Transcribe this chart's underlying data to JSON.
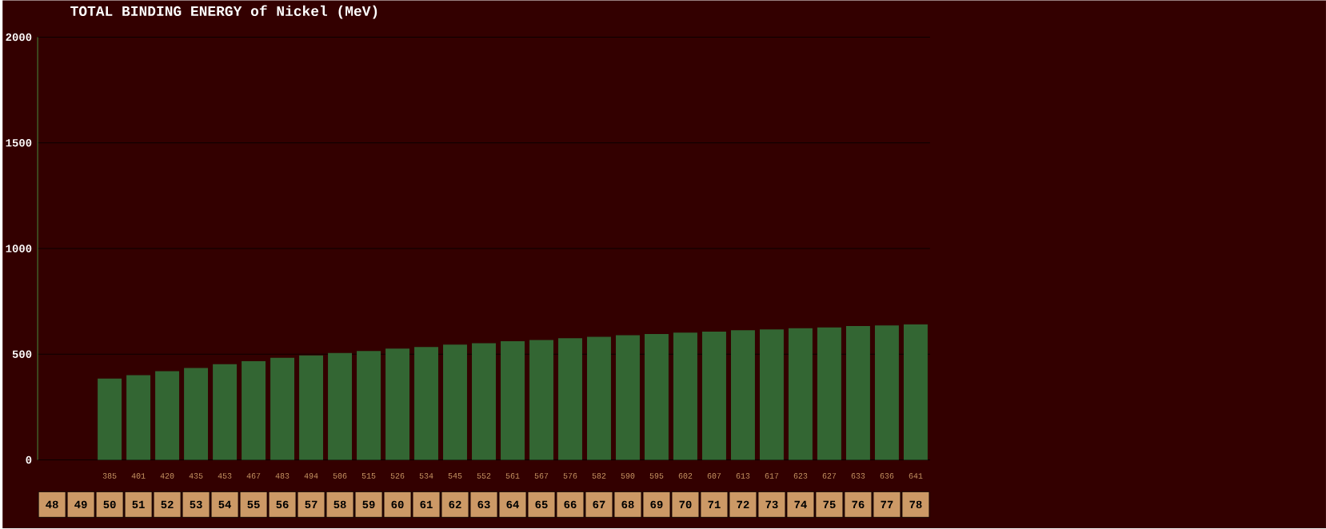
{
  "chart_data": {
    "type": "bar",
    "title": "TOTAL BINDING ENERGY of Nickel (MeV)",
    "categories": [
      "48",
      "49",
      "50",
      "51",
      "52",
      "53",
      "54",
      "55",
      "56",
      "57",
      "58",
      "59",
      "60",
      "61",
      "62",
      "63",
      "64",
      "65",
      "66",
      "67",
      "68",
      "69",
      "70",
      "71",
      "72",
      "73",
      "74",
      "75",
      "76",
      "77",
      "78"
    ],
    "values": [
      null,
      null,
      385,
      401,
      420,
      435,
      453,
      467,
      483,
      494,
      506,
      515,
      526,
      534,
      545,
      552,
      561,
      567,
      576,
      582,
      590,
      595,
      602,
      607,
      613,
      617,
      623,
      627,
      633,
      636,
      641
    ],
    "color": "#336633",
    "ylim": [
      0,
      2000
    ],
    "yticks": [
      0,
      500,
      1000,
      1500,
      2000
    ],
    "value_labels": [
      null,
      null,
      "385",
      "401",
      "420",
      "435",
      "453",
      "467",
      "483",
      "494",
      "506",
      "515",
      "526",
      "534",
      "545",
      "552",
      "561",
      "567",
      "576",
      "582",
      "590",
      "595",
      "602",
      "607",
      "613",
      "617",
      "623",
      "627",
      "633",
      "636",
      "641"
    ],
    "grid": "y"
  }
}
